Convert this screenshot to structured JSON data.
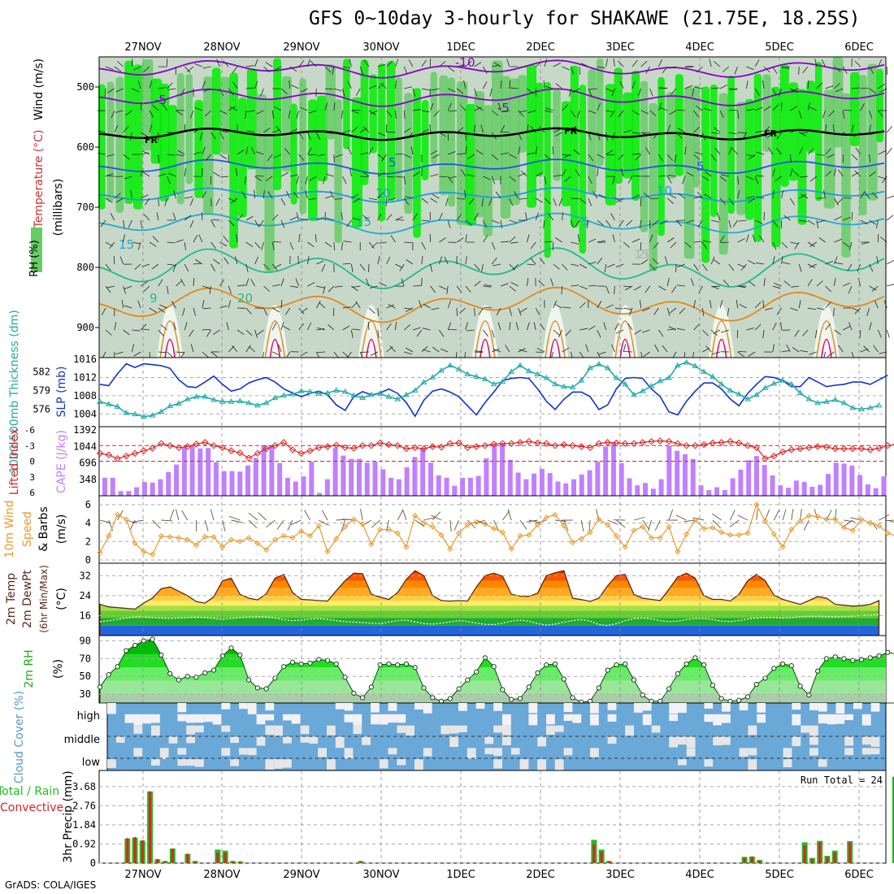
{
  "title": "GFS 0~10day 3-hourly for SHAKAWE (21.75E, 18.25S)",
  "credit": "GrADS: COLA/IGES",
  "dates": [
    "27NOV",
    "28NOV",
    "29NOV",
    "30NOV",
    "1DEC",
    "2DEC",
    "3DEC",
    "4DEC",
    "5DEC",
    "6DEC"
  ],
  "chart_data": [
    {
      "type": "heatmap",
      "id": "upper_air",
      "ylabel_parts": [
        "RH (%)",
        "Temperature (°C)",
        "Wind (m/s)"
      ],
      "ylabel_units": "(millibars)",
      "yticks": [
        500,
        600,
        700,
        800,
        900
      ],
      "ylim": [
        950,
        450
      ],
      "freezing_label": "FR",
      "contour_labels": [
        "-10",
        "-5",
        "-5",
        "5",
        "5",
        "10",
        "10",
        "15",
        "15",
        "5",
        "15",
        "20",
        "20",
        "9"
      ],
      "colors": {
        "rh_high": "#00ee00",
        "rh_mid": "#66cc66",
        "rh_low": "#c8d8c8",
        "temp_cold": "#8800cc",
        "temp_mid": "#2255dd",
        "temp_warm": "#22bb88",
        "temp_hot": "#e08820",
        "temp_very_hot": "#dd0077"
      }
    },
    {
      "type": "line",
      "id": "slp_thickness",
      "ylabel_left": "1000-500mb Thickness (dm)",
      "ylabel_right": "SLP (mb)",
      "left_ticks": [
        576,
        579,
        582
      ],
      "right_ticks": [
        1004,
        1008,
        1012,
        1016
      ],
      "series": [
        {
          "name": "SLP (mb)",
          "color": "#1133cc",
          "values": [
            1010.5,
            1010.2,
            1012.8,
            1015.0,
            1014.2,
            1015.0,
            1014.8,
            1014.6,
            1014.0,
            1011.5,
            1010.0,
            1009.8,
            1011.0,
            1012.3,
            1010.5,
            1009.0,
            1009.5,
            1010.8,
            1011.5,
            1012.0,
            1011.0,
            1009.5,
            1008.6,
            1007.8,
            1008.5,
            1009.0,
            1008.2,
            1006.0,
            1004.8,
            1007.8,
            1008.9,
            1008.2,
            1008.6,
            1009.5,
            1008.5,
            1006.5,
            1003.5,
            1007.0,
            1009.0,
            1009.5,
            1008.8,
            1007.8,
            1005.8,
            1003.8,
            1006.5,
            1008.8,
            1011.3,
            1011.8,
            1012.0,
            1011.8,
            1009.5,
            1006.8,
            1005.0,
            1007.2,
            1008.8,
            1008.8,
            1007.8,
            1005.0,
            1006.0,
            1009.5,
            1011.8,
            1012.0,
            1011.8,
            1009.5,
            1007.8,
            1004.5,
            1003.8,
            1006.8,
            1009.0,
            1010.8,
            1010.8,
            1009.5,
            1007.3,
            1005.8,
            1008.5,
            1010.5,
            1012.2,
            1012.0,
            1011.3,
            1010.0,
            1010.0,
            1012.0,
            1011.0,
            1010.0,
            1010.3,
            1010.5,
            1011.0,
            1011.0,
            1010.5,
            1011.5,
            1012.5
          ]
        },
        {
          "name": "1000-500mb Thickness (dm)",
          "color": "#22aaaa",
          "values": [
            577.2,
            576.8,
            576.4,
            575.4,
            575.2,
            574.8,
            575.0,
            575.6,
            576.5,
            576.9,
            577.6,
            578.0,
            578.0,
            577.5,
            577.2,
            577.2,
            577.3,
            577.0,
            576.6,
            577.0,
            577.8,
            578.2,
            578.4,
            578.9,
            578.8,
            578.5,
            578.6,
            579.0,
            578.8,
            578.2,
            577.8,
            578.3,
            578.5,
            578.0,
            577.6,
            578.3,
            579.0,
            580.3,
            581.1,
            582.2,
            583.0,
            582.4,
            581.6,
            581.2,
            580.8,
            580.0,
            580.4,
            582.0,
            583.0,
            582.1,
            581.6,
            581.0,
            580.0,
            579.6,
            579.5,
            580.6,
            582.6,
            583.2,
            582.6,
            581.0,
            580.0,
            578.3,
            578.9,
            579.7,
            580.5,
            581.0,
            583.0,
            583.5,
            582.9,
            582.0,
            581.2,
            580.0,
            579.0,
            578.4,
            577.6,
            578.3,
            579.4,
            580.1,
            580.6,
            580.0,
            578.6,
            577.6,
            577.0,
            577.2,
            577.5,
            577.0,
            576.2,
            576.0,
            576.2,
            576.6
          ]
        }
      ]
    },
    {
      "type": "bar",
      "id": "cape_li",
      "ylabel_left": "Lifted Index",
      "ylabel_right": "CAPE (J/kg)",
      "li_ticks": [
        -6,
        -3,
        0,
        3,
        6
      ],
      "cape_ticks": [
        348,
        696,
        1044,
        1392
      ],
      "cape_color": "#c080ff",
      "li_color": "#dd2222",
      "cape_values": [
        380,
        380,
        100,
        100,
        180,
        290,
        280,
        350,
        500,
        660,
        1020,
        1050,
        1000,
        1010,
        710,
        520,
        520,
        510,
        640,
        800,
        1060,
        1070,
        690,
        380,
        300,
        410,
        720,
        60,
        350,
        1010,
        850,
        780,
        780,
        700,
        720,
        560,
        380,
        350,
        600,
        820,
        1010,
        700,
        430,
        380,
        210,
        380,
        380,
        420,
        790,
        1080,
        1100,
        760,
        490,
        350,
        470,
        570,
        480,
        300,
        260,
        350,
        450,
        540,
        720,
        1040,
        1120,
        690,
        370,
        220,
        270,
        150,
        350,
        1060,
        950,
        880,
        780,
        220,
        120,
        180,
        120,
        370,
        550,
        750,
        840,
        650,
        430,
        220,
        170,
        320,
        290,
        190,
        230,
        460,
        700,
        680,
        640,
        440,
        240,
        160,
        410
      ],
      "li_values": [
        -1.5,
        -1.2,
        -0.5,
        -1.0,
        -1.5,
        -2.0,
        -2.5,
        -3.4,
        -3.0,
        -2.6,
        -2.8,
        -3.3,
        -3.6,
        -3.0,
        -2.6,
        -2.0,
        -1.6,
        -0.6,
        -1.5,
        -2.4,
        -3.0,
        -3.6,
        -2.2,
        -1.5,
        -2.0,
        -2.6,
        -2.8,
        -3.1,
        -2.6,
        -2.5,
        -3.0,
        -3.0,
        -3.5,
        -3.2,
        -3.0,
        -2.4,
        -2.6,
        -2.4,
        -2.8,
        -2.7,
        -3.4,
        -3.5,
        -2.6,
        -2.8,
        -3.0,
        -3.3,
        -3.4,
        -3.4,
        -3.6,
        -3.8,
        -3.5,
        -3.4,
        -3.0,
        -3.2,
        -3.0,
        -2.8,
        -2.6,
        -3.4,
        -3.6,
        -3.5,
        -3.4,
        -3.4,
        -3.6,
        -3.8,
        -3.9,
        -3.8,
        -3.4,
        -3.0,
        -3.0,
        -3.2,
        -3.5,
        -3.6,
        -3.8,
        -3.5,
        -3.0,
        -2.6,
        -0.5,
        -1.0,
        -1.8,
        -2.2,
        -2.4,
        -2.6,
        -2.8,
        -2.7,
        -2.4,
        -2.4,
        -2.4,
        -2.4,
        -2.2,
        -2.5,
        -3.0,
        -3.2,
        -3.0,
        -2.8,
        -2.8,
        -2.4,
        -2.4,
        -2.2,
        -2.2
      ]
    },
    {
      "type": "line",
      "id": "wind10m",
      "ylabel": "10m Wind Speed & Barbs (m/s)",
      "yticks": [
        0,
        2,
        4,
        6
      ],
      "color": "#e89a2c",
      "barb_color": "#665544",
      "values": [
        0.8,
        2.6,
        4.9,
        4.4,
        1.8,
        0.9,
        0.6,
        2.6,
        2.5,
        2.4,
        2.2,
        1.6,
        2.5,
        2.5,
        1.4,
        2.2,
        2.0,
        2.4,
        1.8,
        1.1,
        2.2,
        2.6,
        2.4,
        3.1,
        2.6,
        3.7,
        0.9,
        2.3,
        3.6,
        4.4,
        3.9,
        1.7,
        3.3,
        3.3,
        2.9,
        1.4,
        4.8,
        4.0,
        3.6,
        2.7,
        1.2,
        2.9,
        3.8,
        4.1,
        3.9,
        3.4,
        3.0,
        1.2,
        2.6,
        2.7,
        3.8,
        4.6,
        4.9,
        3.7,
        1.9,
        2.3,
        3.0,
        4.4,
        3.8,
        2.6,
        1.4,
        3.2,
        3.6,
        2.4,
        2.4,
        3.6,
        0.9,
        2.8,
        4.3,
        3.4,
        3.5,
        3.0,
        2.7,
        2.7,
        2.9,
        6.0,
        4.2,
        2.8,
        1.4,
        3.3,
        4.2,
        4.8,
        4.7,
        4.4,
        4.4,
        3.5,
        3.2,
        4.4,
        4.0,
        3.7,
        2.9,
        2.6,
        3.0,
        1.0,
        2.9,
        1.9,
        1.2,
        2.6,
        0.2,
        1.5,
        2.6
      ]
    },
    {
      "type": "area",
      "id": "temp2m",
      "ylabel": "2m Temp / 2m DewPt (6hr Min/Max) (°C)",
      "yticks": [
        16,
        24,
        32
      ],
      "temp_values": [
        20.5,
        19.5,
        19.2,
        18.9,
        18.6,
        21.0,
        23.0,
        26.8,
        27.5,
        25.8,
        24.0,
        21.6,
        21.0,
        23.5,
        30.0,
        31.0,
        24.5,
        23.0,
        22.3,
        24.7,
        31.0,
        32.5,
        25.3,
        22.5,
        22.3,
        22.0,
        21.8,
        26.0,
        30.0,
        33.0,
        32.8,
        24.6,
        23.4,
        22.5,
        25.2,
        30.5,
        34.0,
        32.0,
        24.0,
        22.0,
        21.8,
        22.0,
        21.8,
        27.5,
        32.0,
        33.0,
        31.8,
        24.6,
        23.8,
        23.7,
        25.0,
        32.0,
        33.2,
        34.0,
        23.0,
        22.4,
        21.7,
        23.0,
        28.0,
        32.0,
        32.5,
        24.5,
        23.0,
        22.5,
        22.0,
        26.5,
        31.5,
        33.0,
        31.0,
        24.0,
        22.5,
        22.5,
        21.8,
        24.5,
        30.0,
        32.5,
        30.0,
        24.2,
        22.5,
        21.5,
        20.5,
        22.0,
        23.6,
        23.0,
        20.5,
        20.2,
        19.8,
        20.0,
        20.5,
        22.0
      ],
      "dew_values": [
        13.5,
        14.0,
        14.5,
        15.0,
        15.5,
        15.5,
        15.2,
        15.0,
        14.8,
        15.0,
        15.2,
        15.4,
        15.2,
        14.8,
        14.5,
        14.8,
        15.2,
        15.4,
        15.6,
        15.5,
        15.0,
        14.4,
        14.0,
        14.2,
        14.6,
        14.8,
        14.5,
        14.0,
        13.6,
        13.4,
        13.2,
        13.0,
        12.8,
        13.4,
        14.0,
        14.2,
        13.5,
        12.8,
        12.6,
        13.0,
        13.5,
        14.0,
        13.6,
        13.0,
        12.5,
        12.4,
        13.0,
        13.8,
        14.2,
        13.8,
        12.8,
        12.2,
        12.6,
        13.4,
        14.0,
        14.4,
        13.8,
        12.4,
        12.0,
        12.8,
        14.0,
        14.8,
        15.0,
        14.6,
        14.0,
        13.6,
        13.8,
        14.4,
        14.8,
        14.8,
        14.4,
        13.8,
        13.6,
        14.0,
        14.6,
        15.0,
        15.2,
        15.2,
        15.0,
        15.2,
        15.6,
        15.8,
        15.8,
        15.6,
        15.5,
        15.6,
        15.8,
        16.0,
        16.2,
        16.4,
        16.6,
        16.8,
        17.0,
        17.2,
        17.4,
        17.6,
        17.8,
        18.0,
        18.2,
        18.5
      ],
      "fill_colors": [
        "#2266dd",
        "#22aa33",
        "#66cc33",
        "#aade44",
        "#ffee66",
        "#ffcc44",
        "#ffaa22",
        "#ff8800",
        "#ff5500",
        "#ee2200"
      ]
    },
    {
      "type": "area",
      "id": "rh2m",
      "ylabel": "2m RH (%)",
      "yticks": [
        30,
        50,
        70,
        90
      ],
      "values": [
        38,
        52,
        61,
        79,
        85,
        90,
        92,
        74,
        53,
        46,
        50,
        49,
        54,
        57,
        73,
        82,
        74,
        46,
        37,
        36,
        48,
        61,
        66,
        64,
        65,
        69,
        68,
        64,
        49,
        31,
        26,
        38,
        63,
        64,
        63,
        64,
        60,
        37,
        26,
        22,
        25,
        36,
        46,
        55,
        71,
        61,
        35,
        24,
        25,
        38,
        54,
        63,
        64,
        47,
        26,
        21,
        22,
        37,
        57,
        63,
        64,
        46,
        29,
        22,
        22,
        36,
        53,
        64,
        71,
        63,
        40,
        25,
        22,
        23,
        27,
        41,
        48,
        59,
        64,
        62,
        39,
        29,
        56,
        70,
        72,
        70,
        68,
        69,
        71,
        73,
        77,
        75,
        81,
        67,
        60,
        77,
        82,
        82,
        83,
        83,
        79
      ],
      "fill_colors": [
        "#009900",
        "#00bb00",
        "#22dd22",
        "#66ee66",
        "#99e699",
        "#aaccaa"
      ]
    },
    {
      "type": "heatmap",
      "id": "cloud_cover",
      "ylabel": "Cloud Cover (%)",
      "levels": [
        "high",
        "middle",
        "low"
      ],
      "colors": {
        "cloud": "#6aa8d8",
        "clear": "#e6e6e6",
        "high_clear": "#f2f2f6"
      }
    },
    {
      "type": "bar",
      "id": "precip",
      "ylabel_left_parts": [
        "Total / Rain",
        "Convective"
      ],
      "ylabel": "3hr Precip (mm)",
      "yticks": [
        0,
        0.92,
        1.84,
        2.76,
        3.68
      ],
      "run_total_label": "Run Total =",
      "run_total": "24",
      "rain_color": "#22bb22",
      "convective_color": "#dd2222",
      "total_values": [
        0,
        1.18,
        1.22,
        1.08,
        3.45,
        0.18,
        0.1,
        0.7,
        0,
        0.44,
        0.1,
        0,
        0,
        0.65,
        0.6,
        0.1,
        0.07,
        0,
        0,
        0,
        0,
        0,
        0,
        0,
        0,
        0,
        0,
        0,
        0,
        0,
        0,
        0,
        0.1,
        0,
        0,
        0,
        0,
        0,
        0,
        0,
        0,
        0,
        0,
        0,
        0,
        0,
        0,
        0,
        0,
        0,
        0,
        0,
        0,
        0,
        0,
        0,
        0,
        0,
        0,
        0,
        0,
        0,
        0,
        1.12,
        0.65,
        0.1,
        0,
        0,
        0,
        0,
        0,
        0,
        0,
        0,
        0,
        0,
        0,
        0,
        0,
        0,
        0,
        0,
        0,
        0.3,
        0.32,
        0.15,
        0,
        0,
        0,
        0,
        0,
        1.0,
        0.25,
        1.07,
        0.35,
        0.6,
        0,
        1.06,
        0,
        0,
        0,
        0,
        0,
        4.15,
        2.3
      ],
      "conv_values": [
        0,
        1.2,
        1.25,
        1.1,
        3.45,
        0.2,
        0.1,
        0.7,
        0,
        0.45,
        0.1,
        0,
        0,
        0.5,
        0.5,
        0.1,
        0.08,
        0,
        0,
        0,
        0,
        0,
        0,
        0,
        0,
        0,
        0,
        0,
        0,
        0,
        0,
        0,
        0.1,
        0,
        0,
        0,
        0,
        0,
        0,
        0,
        0,
        0,
        0,
        0,
        0,
        0,
        0,
        0,
        0,
        0,
        0,
        0,
        0,
        0,
        0,
        0,
        0,
        0,
        0,
        0,
        0,
        0,
        0,
        0.9,
        0.55,
        0.1,
        0,
        0,
        0,
        0,
        0,
        0,
        0,
        0,
        0,
        0,
        0,
        0,
        0,
        0,
        0,
        0,
        0,
        0.25,
        0.3,
        0.12,
        0,
        0,
        0,
        0,
        0,
        0.85,
        0.2,
        1.0,
        0.3,
        0.5,
        0,
        1.0,
        0,
        0,
        0,
        0,
        0,
        4.2,
        2.3
      ]
    }
  ]
}
